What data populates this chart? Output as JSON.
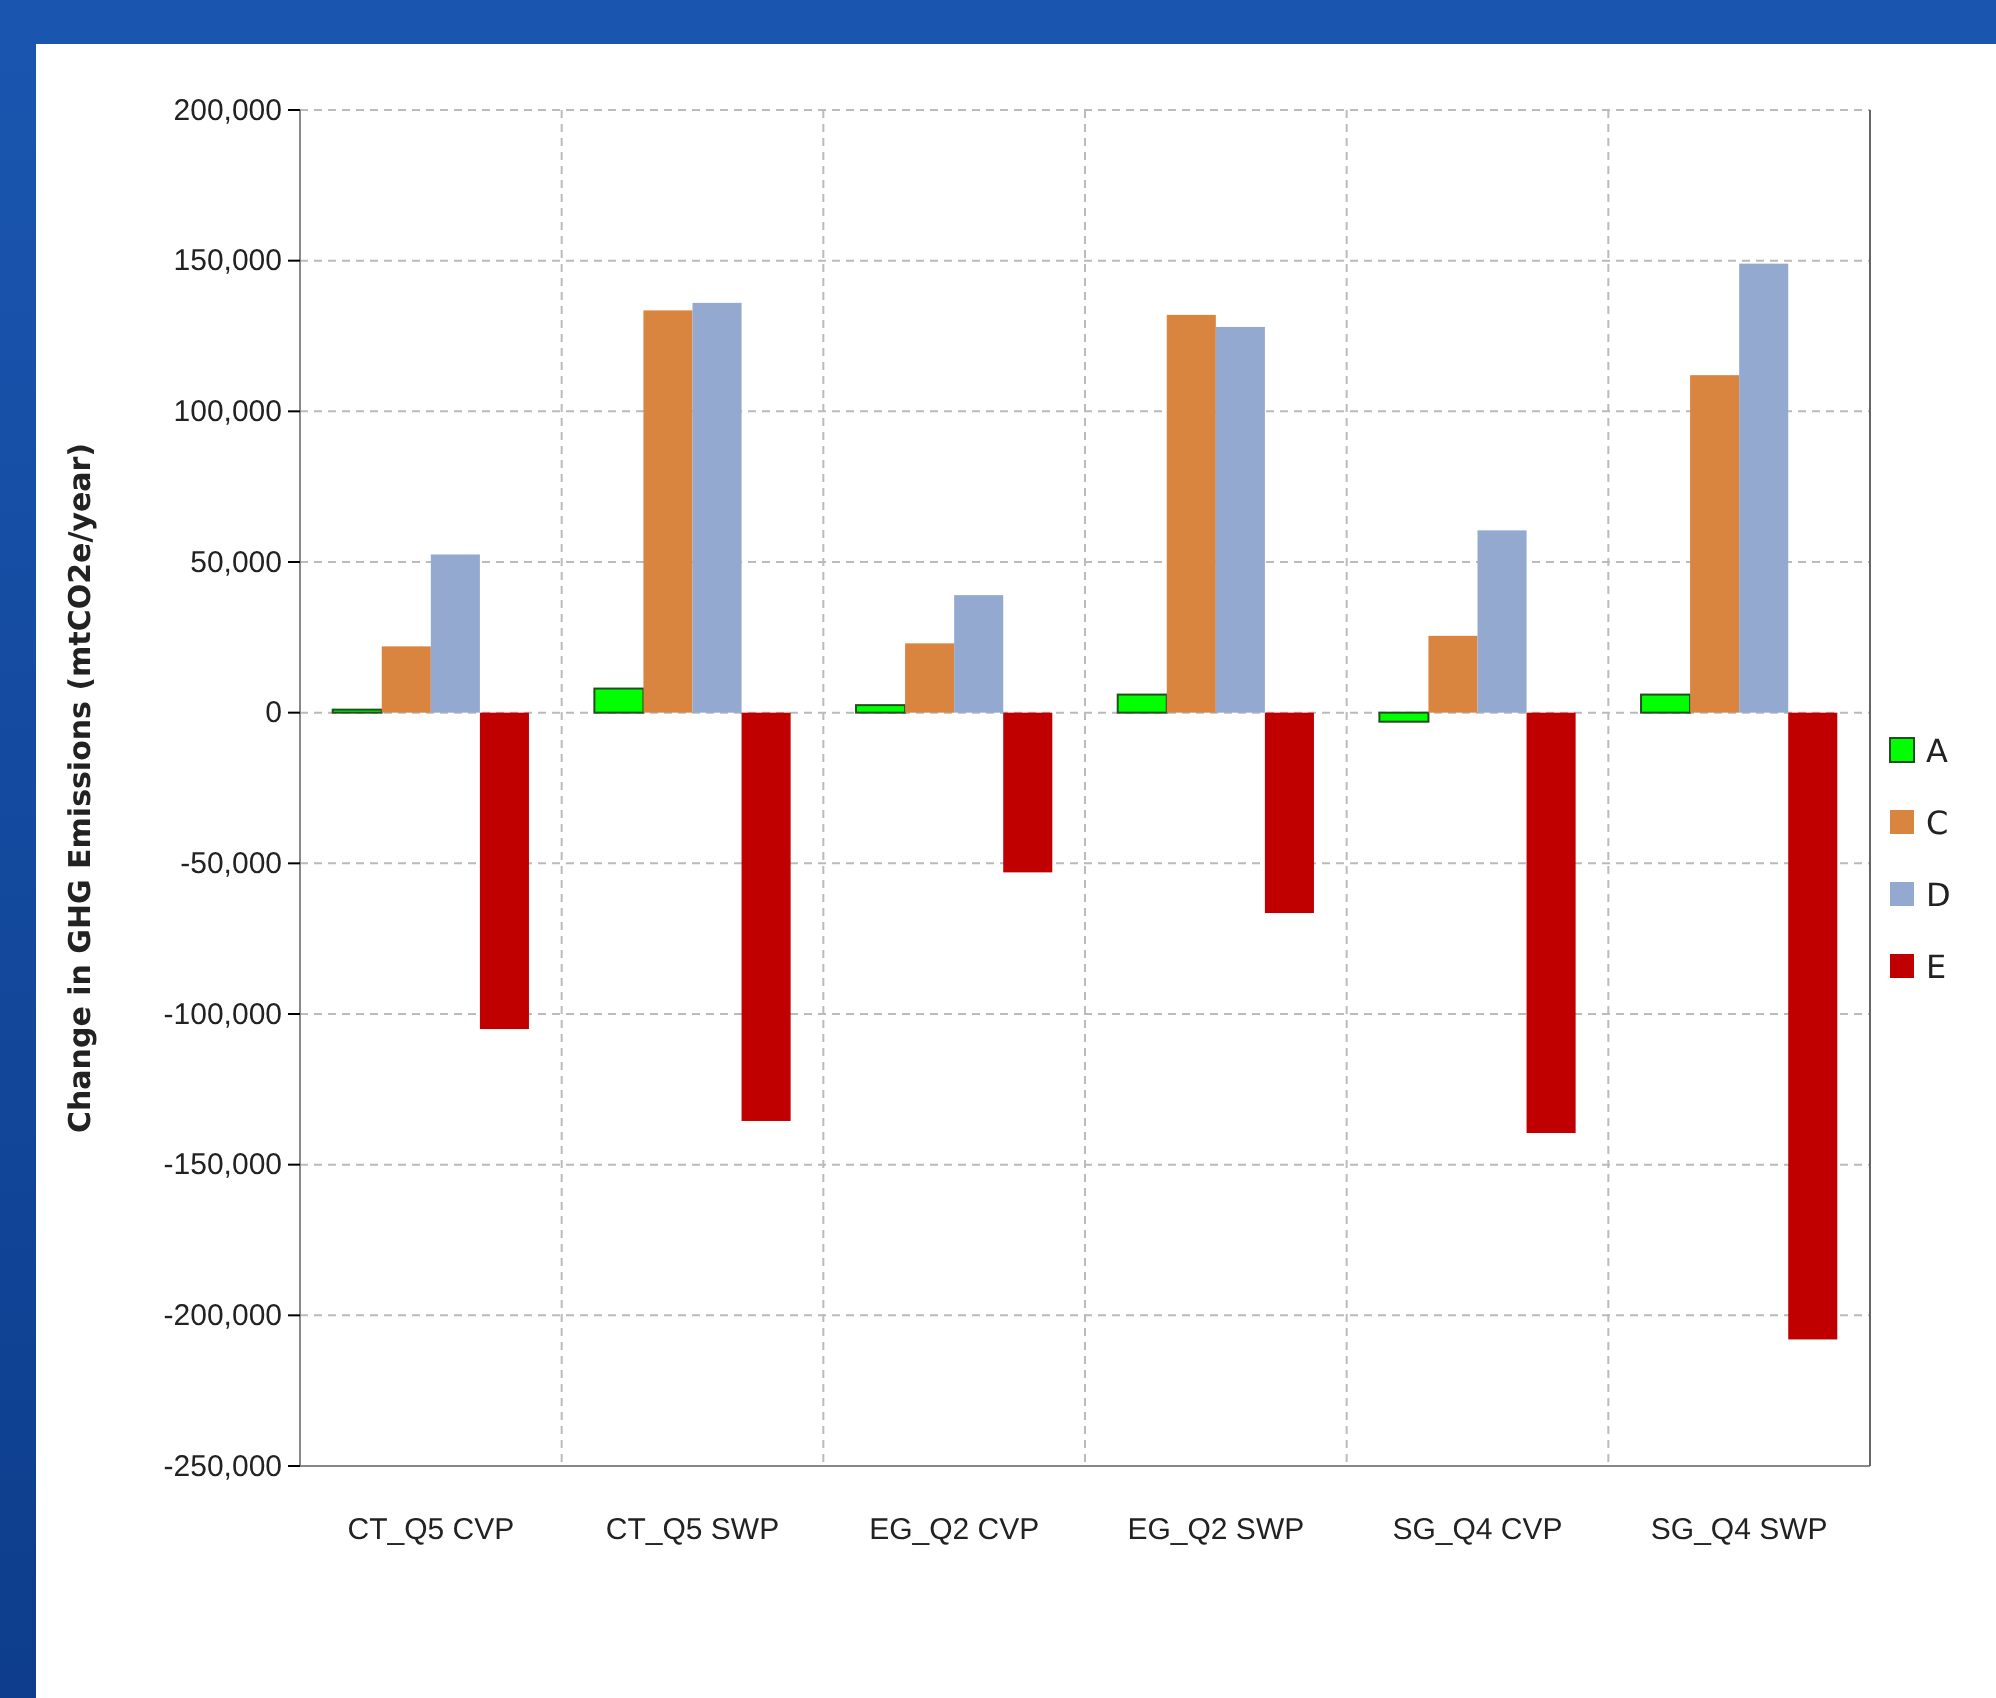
{
  "chart_data": {
    "type": "bar",
    "ylabel": "Change in GHG Emissions (mtCO2e/year)",
    "categories": [
      "CT_Q5 CVP",
      "CT_Q5 SWP",
      "EG_Q2 CVP",
      "EG_Q2 SWP",
      "SG_Q4 CVP",
      "SG_Q4 SWP"
    ],
    "series": [
      {
        "name": "A",
        "color": "#00ff00",
        "values": [
          1000,
          8000,
          2500,
          6000,
          -3000,
          6000
        ]
      },
      {
        "name": "C",
        "color": "#d9843f",
        "values": [
          22000,
          133500,
          23000,
          132000,
          25500,
          112000
        ]
      },
      {
        "name": "D",
        "color": "#93a9d0",
        "values": [
          52500,
          136000,
          39000,
          128000,
          60500,
          149000
        ]
      },
      {
        "name": "E",
        "color": "#c00000",
        "values": [
          -105000,
          -135500,
          -53000,
          -66500,
          -139500,
          -208000
        ]
      }
    ],
    "ylim": [
      -250000,
      200000
    ],
    "yticks": [
      {
        "value": -250000,
        "label": "-250,000"
      },
      {
        "value": -200000,
        "label": "-200,000"
      },
      {
        "value": -150000,
        "label": "-150,000"
      },
      {
        "value": -100000,
        "label": "-100,000"
      },
      {
        "value": -50000,
        "label": "-50,000"
      },
      0,
      {
        "value": 50000,
        "label": "50,000"
      },
      {
        "value": 100000,
        "label": "100,000"
      },
      {
        "value": 150000,
        "label": "150,000"
      },
      {
        "value": 200000,
        "label": "200,000"
      }
    ],
    "grid": true,
    "legend": "right"
  }
}
